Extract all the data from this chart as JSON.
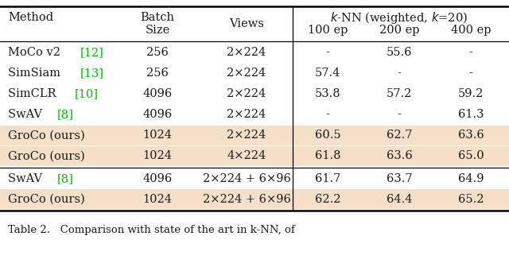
{
  "rows": [
    {
      "method": "MoCo v2",
      "ref": "12",
      "batch": "256",
      "views": "2×224",
      "ep100": "-",
      "ep200": "55.6",
      "ep400": "-",
      "highlight": false
    },
    {
      "method": "SimSiam",
      "ref": "13",
      "batch": "256",
      "views": "2×224",
      "ep100": "57.4",
      "ep200": "-",
      "ep400": "-",
      "highlight": false
    },
    {
      "method": "SimCLR",
      "ref": "10",
      "batch": "4096",
      "views": "2×224",
      "ep100": "53.8",
      "ep200": "57.2",
      "ep400": "59.2",
      "highlight": false
    },
    {
      "method": "SwAV",
      "ref": "8",
      "batch": "4096",
      "views": "2×224",
      "ep100": "-",
      "ep200": "-",
      "ep400": "61.3",
      "highlight": false
    },
    {
      "method": "GroCo (ours)",
      "ref": null,
      "batch": "1024",
      "views": "2×224",
      "ep100": "60.5",
      "ep200": "62.7",
      "ep400": "63.6",
      "highlight": true
    },
    {
      "method": "GroCo (ours)",
      "ref": null,
      "batch": "1024",
      "views": "4×224",
      "ep100": "61.8",
      "ep200": "63.6",
      "ep400": "65.0",
      "highlight": true
    }
  ],
  "rows2": [
    {
      "method": "SwAV",
      "ref": "8",
      "batch": "4096",
      "views": "2×224 + 6×96",
      "ep100": "61.7",
      "ep200": "63.7",
      "ep400": "64.9",
      "highlight": false
    },
    {
      "method": "GroCo (ours)",
      "ref": null,
      "batch": "1024",
      "views": "2×224 + 6×96",
      "ep100": "62.2",
      "ep200": "64.4",
      "ep400": "65.2",
      "highlight": true
    }
  ],
  "highlight_color": "#f5dfc8",
  "bg_color": "#ffffff",
  "text_color": "#1a1a1a",
  "green_color": "#00bb00",
  "caption": "Table 2.   Comparison with state of the art in k-NN, of"
}
